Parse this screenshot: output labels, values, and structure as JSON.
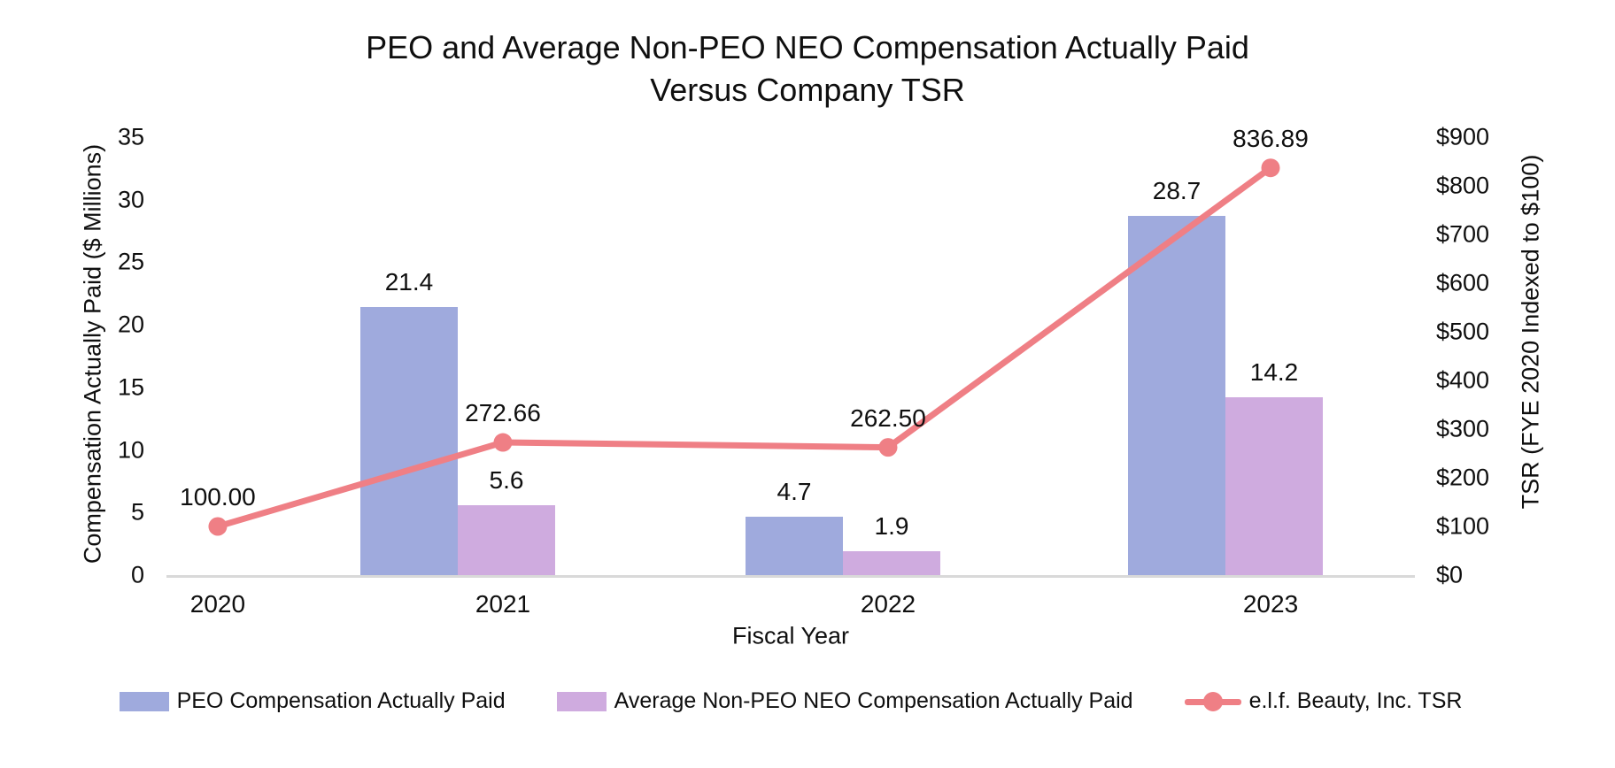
{
  "chart_data": {
    "type": "combo-bar-line",
    "title": "PEO and Average Non-PEO NEO Compensation Actually Paid Versus Company TSR",
    "title_lines": [
      "PEO and Average Non-PEO NEO Compensation Actually Paid",
      "Versus Company TSR"
    ],
    "categories": [
      "2020",
      "2021",
      "2022",
      "2023"
    ],
    "series": [
      {
        "name": "PEO Compensation Actually Paid",
        "type": "bar",
        "axis": "left",
        "color": "#9FAADD",
        "values": [
          null,
          21.4,
          4.7,
          28.7
        ],
        "data_labels": [
          "",
          "21.4",
          "4.7",
          "28.7"
        ]
      },
      {
        "name": "Average Non-PEO NEO Compensation Actually Paid",
        "type": "bar",
        "axis": "left",
        "color": "#CFABDF",
        "values": [
          null,
          5.6,
          1.9,
          14.2
        ],
        "data_labels": [
          "",
          "5.6",
          "1.9",
          "14.2"
        ]
      },
      {
        "name": "e.l.f. Beauty, Inc. TSR",
        "type": "line",
        "axis": "right",
        "color": "#EF7F85",
        "values": [
          100.0,
          272.66,
          262.5,
          836.89
        ],
        "data_labels": [
          "100.00",
          "272.66",
          "262.50",
          "836.89"
        ]
      }
    ],
    "x_axis": {
      "title": "Fiscal Year"
    },
    "left_axis": {
      "title": "Compensation Actually Paid ($ Millions)",
      "min": 0,
      "max": 35,
      "step": 5,
      "tick_labels": [
        "0",
        "5",
        "10",
        "15",
        "20",
        "25",
        "30",
        "35"
      ]
    },
    "right_axis": {
      "title": "TSR (FYE 2020 Indexed to $100)",
      "min": 0,
      "max": 900,
      "step": 100,
      "tick_labels": [
        "$0",
        "$100",
        "$200",
        "$300",
        "$400",
        "$500",
        "$600",
        "$700",
        "$800",
        "$900"
      ]
    },
    "grid": false,
    "legend_position": "bottom",
    "axis_line_color": "#D9D9D9",
    "text_color": "#0f0f0f",
    "background_color": "#ffffff"
  }
}
